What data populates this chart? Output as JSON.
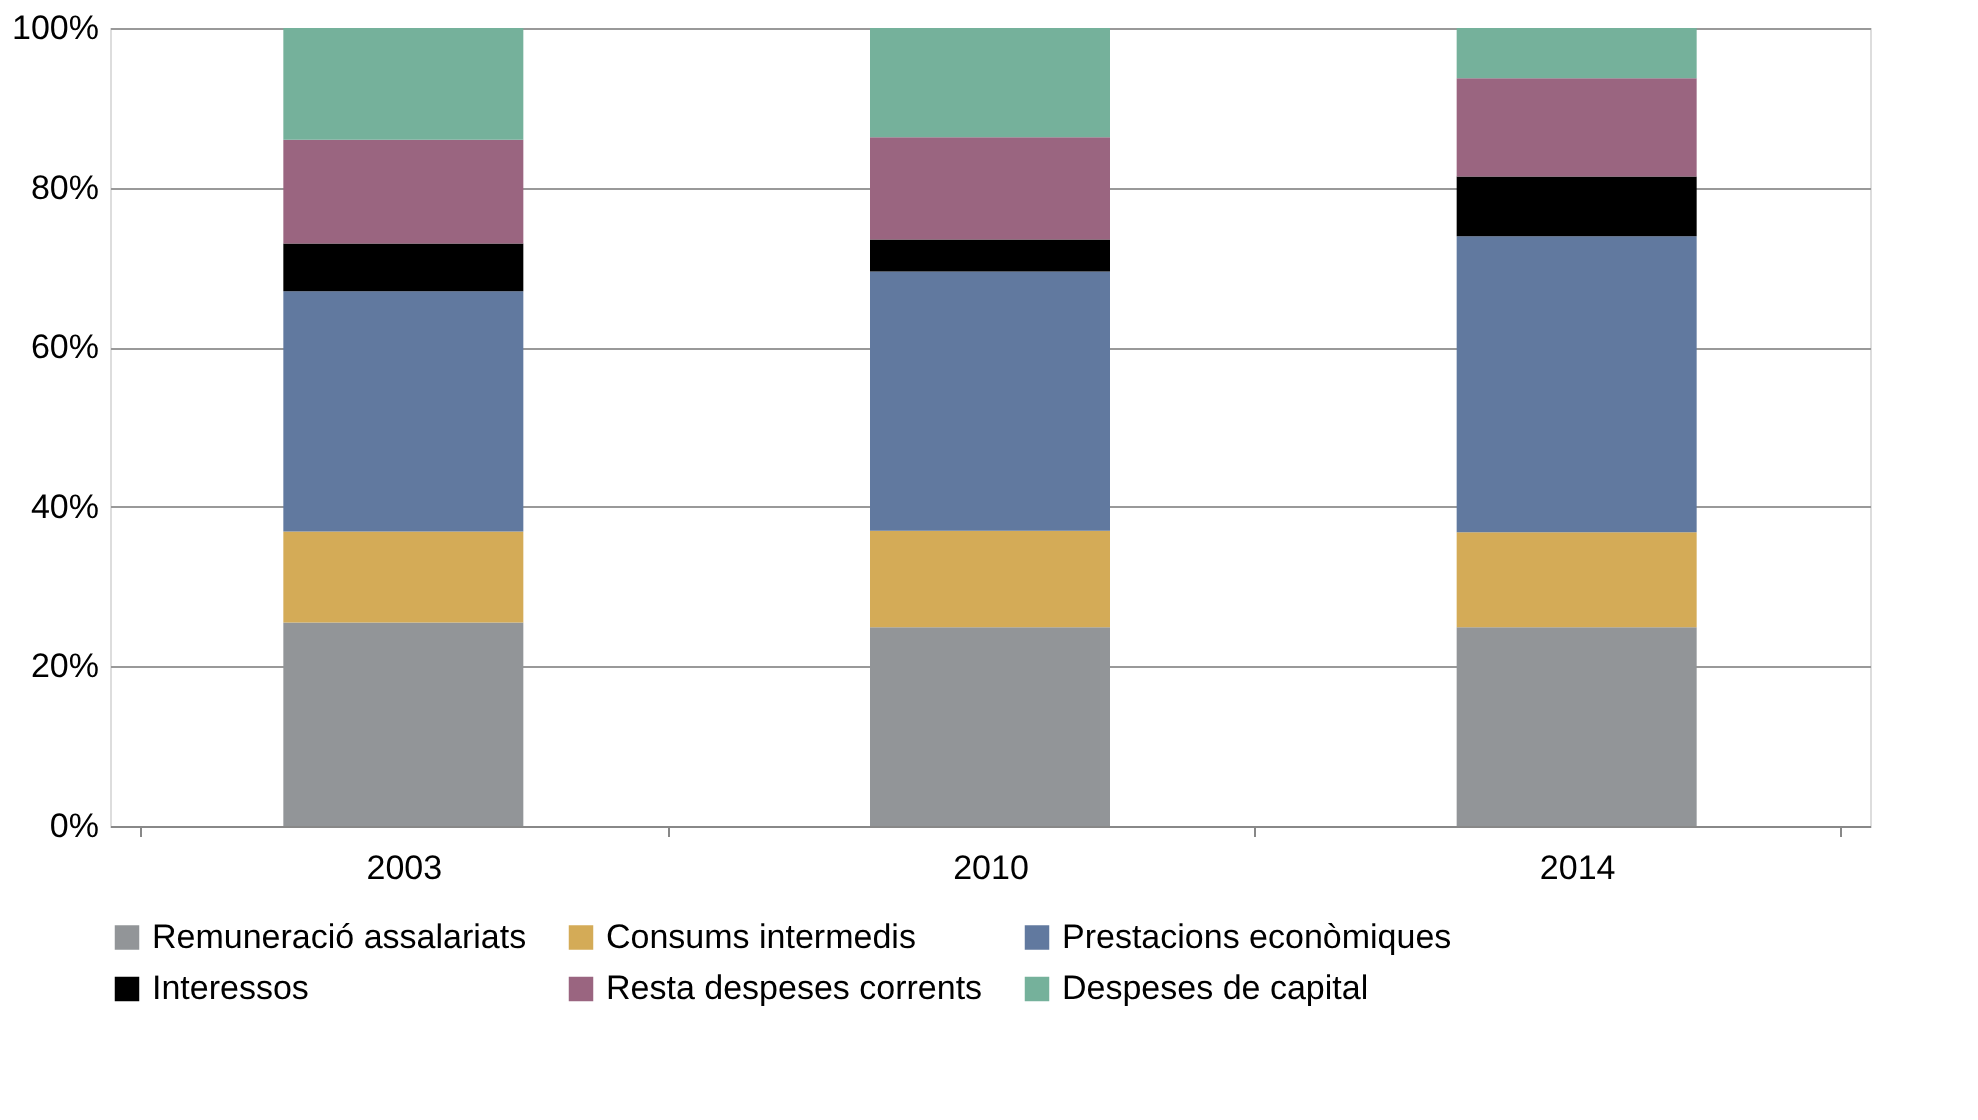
{
  "chart_data": {
    "type": "bar",
    "stacked": true,
    "categories": [
      "2003",
      "2010",
      "2014"
    ],
    "series": [
      {
        "name": "Remuneració assalariats",
        "color": "#929598",
        "values": [
          25.5,
          24.9,
          24.9
        ]
      },
      {
        "name": "Consums intermedis",
        "color": "#d4ab57",
        "values": [
          11.4,
          12.1,
          11.9
        ]
      },
      {
        "name": "Prestacions econòmiques",
        "color": "#61799f",
        "values": [
          30.1,
          32.5,
          37.1
        ]
      },
      {
        "name": "Interessos",
        "color": "#000000",
        "values": [
          6.0,
          4.0,
          7.5
        ]
      },
      {
        "name": "Resta despeses corrents",
        "color": "#9a6580",
        "values": [
          13.0,
          12.8,
          12.3
        ]
      },
      {
        "name": "Despeses de capital",
        "color": "#75b19b",
        "values": [
          14.0,
          13.7,
          6.3
        ]
      }
    ],
    "ylim": [
      0,
      100
    ],
    "yticks": [
      {
        "value": 0,
        "label": "0%"
      },
      {
        "value": 20,
        "label": "20%"
      },
      {
        "value": 40,
        "label": "40%"
      },
      {
        "value": 60,
        "label": "60%"
      },
      {
        "value": 80,
        "label": "80%"
      },
      {
        "value": 100,
        "label": "100%"
      }
    ],
    "grid": "y",
    "legend": "bottom"
  }
}
